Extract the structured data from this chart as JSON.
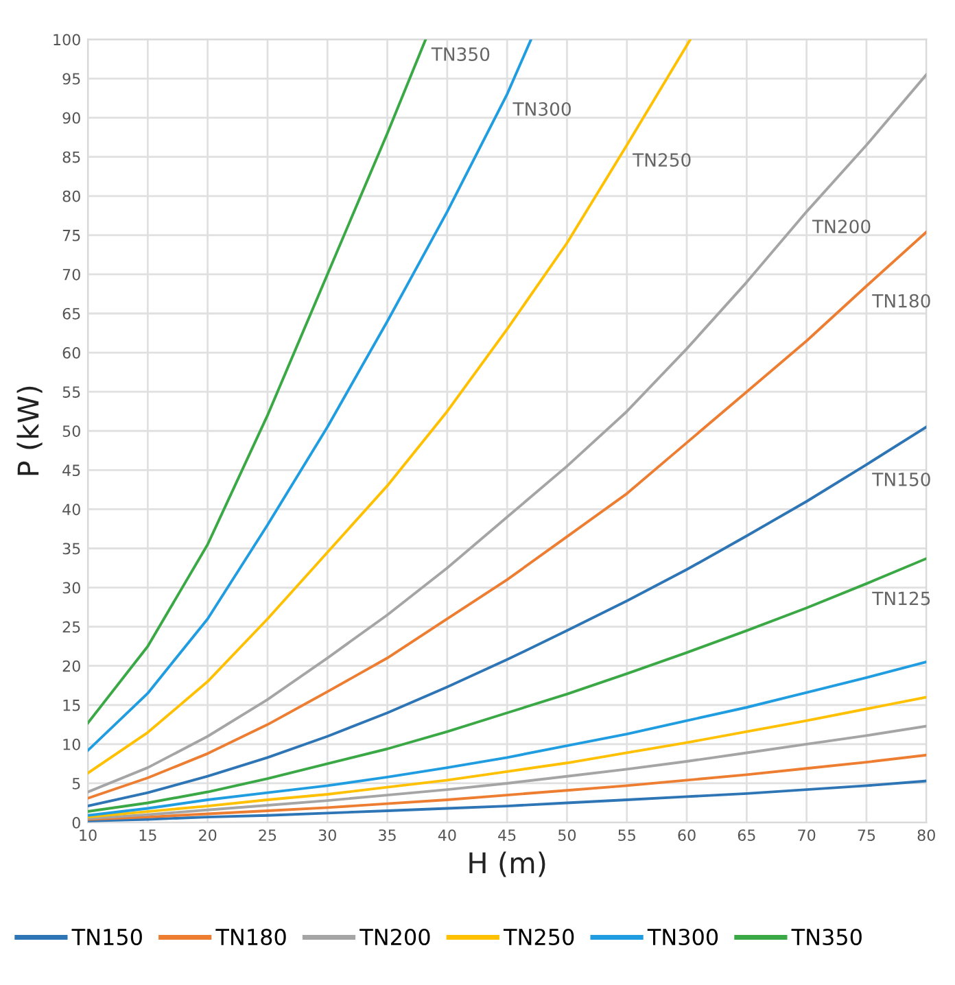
{
  "chart_data": {
    "type": "line",
    "xlabel": "H (m)",
    "ylabel": "P (kW)",
    "xlim": [
      10,
      80
    ],
    "xticks": [
      10,
      15,
      20,
      25,
      30,
      35,
      40,
      45,
      50,
      55,
      60,
      65,
      70,
      75,
      80
    ],
    "ylim": [
      0,
      100
    ],
    "yticks": [
      0,
      5,
      10,
      15,
      20,
      25,
      30,
      35,
      40,
      45,
      50,
      55,
      60,
      65,
      70,
      75,
      80,
      85,
      90,
      95,
      100
    ],
    "grid": true,
    "legend": "bottom",
    "marker": "none",
    "line_style": "solid",
    "series": [
      {
        "name": "TN150",
        "color": "#2e75b6",
        "x": [
          10,
          15,
          20,
          25,
          30,
          35,
          40,
          45,
          50,
          55,
          60,
          65,
          70,
          75,
          80
        ],
        "values": [
          0.2,
          0.4,
          0.7,
          0.9,
          1.2,
          1.5,
          1.8,
          2.1,
          2.5,
          2.9,
          3.3,
          3.7,
          4.2,
          4.7,
          5.3
        ]
      },
      {
        "name": "TN180",
        "color": "#ed7d31",
        "x": [
          10,
          15,
          20,
          25,
          30,
          35,
          40,
          45,
          50,
          55,
          60,
          65,
          70,
          75,
          80
        ],
        "values": [
          0.4,
          0.7,
          1.1,
          1.5,
          1.9,
          2.4,
          2.9,
          3.5,
          4.1,
          4.7,
          5.4,
          6.1,
          6.9,
          7.7,
          8.6
        ]
      },
      {
        "name": "TN200",
        "color": "#a5a5a5",
        "x": [
          10,
          15,
          20,
          25,
          30,
          35,
          40,
          45,
          50,
          55,
          60,
          65,
          70,
          75,
          80
        ],
        "values": [
          0.5,
          1.0,
          1.6,
          2.2,
          2.8,
          3.5,
          4.2,
          5.0,
          5.9,
          6.8,
          7.8,
          8.9,
          10,
          11.1,
          12.3
        ]
      },
      {
        "name": "TN250",
        "color": "#ffc000",
        "x": [
          10,
          15,
          20,
          25,
          30,
          35,
          40,
          45,
          50,
          55,
          60,
          65,
          70,
          75,
          80
        ],
        "values": [
          0.7,
          1.4,
          2.1,
          2.9,
          3.6,
          4.5,
          5.4,
          6.5,
          7.6,
          8.9,
          10.2,
          11.6,
          13,
          14.5,
          16
        ]
      },
      {
        "name": "TN300",
        "color": "#1f9de0",
        "x": [
          10,
          15,
          20,
          25,
          30,
          35,
          40,
          45,
          50,
          55,
          60,
          65,
          70,
          75,
          80
        ],
        "values": [
          0.9,
          1.8,
          2.9,
          3.8,
          4.7,
          5.8,
          7.0,
          8.3,
          9.8,
          11.3,
          13,
          14.7,
          16.6,
          18.5,
          20.5
        ]
      },
      {
        "name": "TN350",
        "color": "#3aa845",
        "x": [
          10,
          15,
          20,
          25,
          30,
          35,
          40,
          45,
          50,
          55,
          60,
          65,
          70,
          75,
          80
        ],
        "values": [
          1.4,
          2.5,
          3.9,
          5.6,
          7.5,
          9.4,
          11.6,
          14,
          16.4,
          19,
          21.7,
          24.5,
          27.4,
          30.5,
          33.7
        ]
      },
      {
        "color": "#2e75b6",
        "x": [
          10,
          15,
          20,
          25,
          30,
          35,
          40,
          45,
          50,
          55,
          60,
          65,
          70,
          75,
          80
        ],
        "values": [
          2.1,
          3.8,
          5.9,
          8.3,
          11,
          14,
          17.3,
          20.8,
          24.5,
          28.3,
          32.3,
          36.6,
          41,
          45.7,
          50.5
        ]
      },
      {
        "color": "#ed7d31",
        "x": [
          10,
          15,
          20,
          25,
          30,
          35,
          40,
          45,
          50,
          55,
          60,
          65,
          70,
          75,
          80
        ],
        "values": [
          3.1,
          5.7,
          8.8,
          12.5,
          16.7,
          21,
          26,
          31,
          36.5,
          42,
          48.5,
          55,
          61.5,
          68.5,
          75.4
        ]
      },
      {
        "color": "#a5a5a5",
        "x": [
          10,
          15,
          20,
          25,
          30,
          35,
          40,
          45,
          50,
          55,
          60,
          65,
          70,
          75,
          80
        ],
        "values": [
          3.9,
          7,
          11,
          15.7,
          21,
          26.5,
          32.5,
          39,
          45.5,
          52.5,
          60.5,
          69,
          78,
          86.5,
          95.5
        ]
      },
      {
        "color": "#ffc000",
        "x": [
          10,
          15,
          20,
          25,
          30,
          35,
          40,
          45,
          50,
          55,
          60.3
        ],
        "values": [
          6.3,
          11.5,
          18,
          26,
          34.5,
          43,
          52.5,
          63,
          74,
          86.5,
          100
        ]
      },
      {
        "color": "#1f9de0",
        "x": [
          10,
          15,
          20,
          25,
          30,
          35,
          40,
          45,
          47
        ],
        "values": [
          9.2,
          16.5,
          26,
          38,
          50.5,
          64,
          78,
          93,
          100
        ]
      },
      {
        "color": "#3aa845",
        "x": [
          10,
          15,
          20,
          25,
          30,
          35,
          38.2
        ],
        "values": [
          12.7,
          22.5,
          35.5,
          52,
          70,
          88,
          100
        ]
      }
    ],
    "annotations": [
      {
        "text": "TN350",
        "x": 38.2,
        "y": 100
      },
      {
        "text": "TN300",
        "x": 45,
        "y": 93
      },
      {
        "text": "TN250",
        "x": 55,
        "y": 86.5
      },
      {
        "text": "TN200",
        "x": 70,
        "y": 78
      },
      {
        "text": "TN180",
        "x": 75,
        "y": 68.5
      },
      {
        "text": "TN150",
        "x": 75,
        "y": 45.7
      },
      {
        "text": "TN125",
        "x": 75,
        "y": 30.5
      }
    ]
  }
}
